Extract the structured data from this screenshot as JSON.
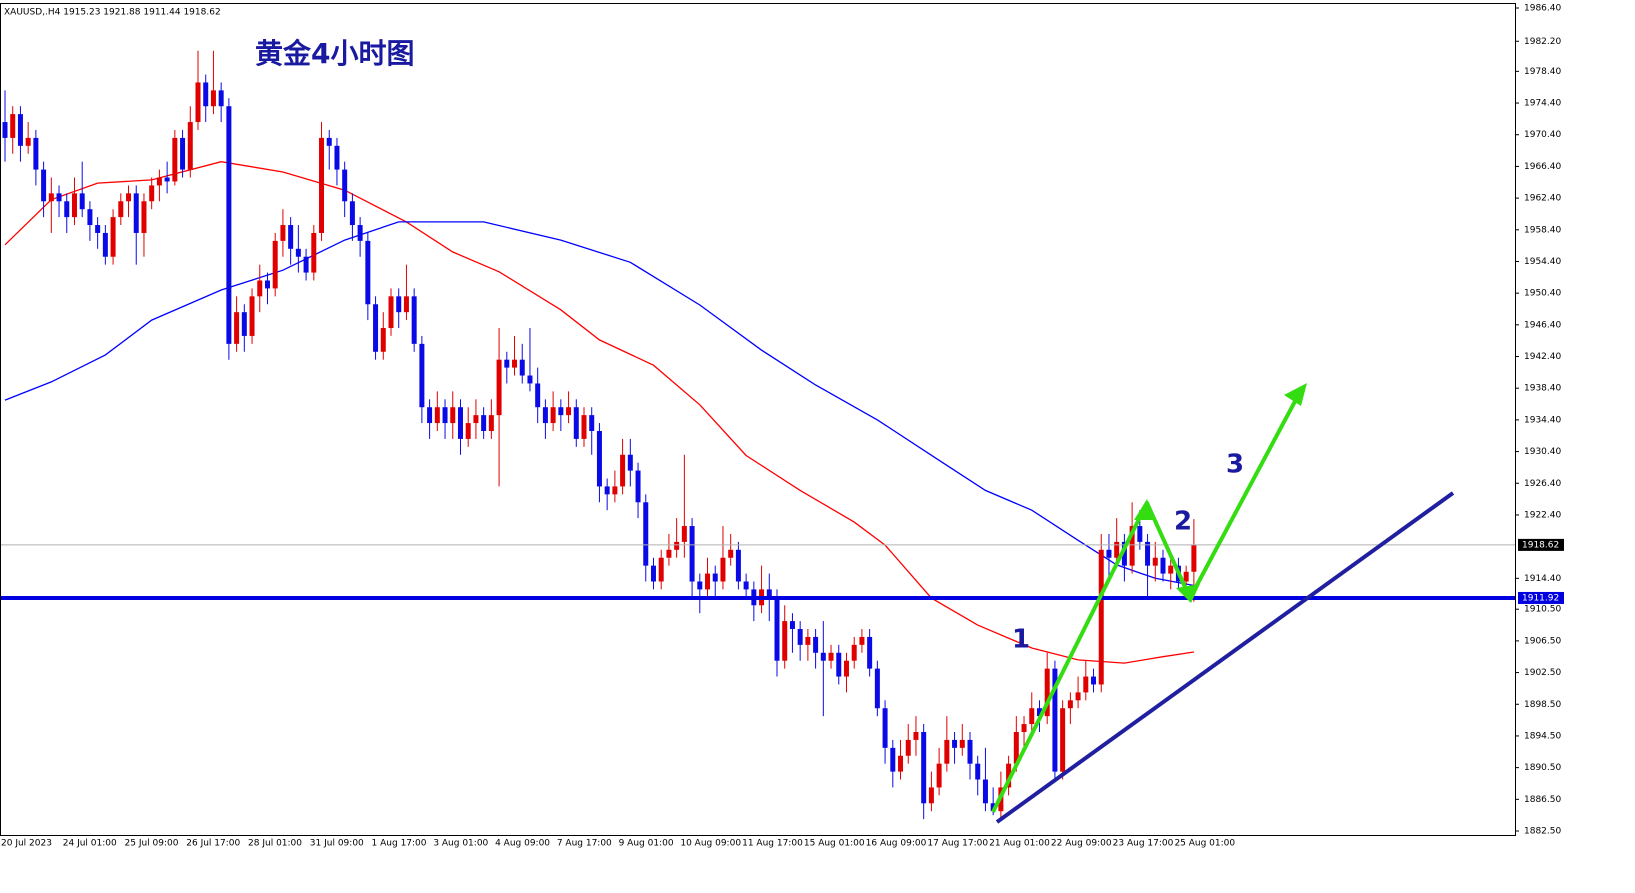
{
  "chart_data": {
    "type": "candlestick",
    "header": "XAUUSD,.H4  1915.23 1921.88 1911.44 1918.62",
    "title": "黄金4小时图",
    "annotations": [
      "1",
      "2",
      "3"
    ],
    "up_color": "#e00000",
    "down_color": "#0a0ae6",
    "categories": [
      "20 Jul 2023",
      null,
      null,
      null,
      null,
      null,
      null,
      null,
      "24 Jul 01:00",
      null,
      null,
      null,
      null,
      null,
      null,
      null,
      "25 Jul 09:00",
      null,
      null,
      null,
      null,
      null,
      null,
      null,
      "26 Jul 17:00",
      null,
      null,
      null,
      null,
      null,
      null,
      null,
      "28 Jul 01:00",
      null,
      null,
      null,
      null,
      null,
      null,
      null,
      "31 Jul 09:00",
      null,
      null,
      null,
      null,
      null,
      null,
      null,
      "1 Aug 17:00",
      null,
      null,
      null,
      null,
      null,
      null,
      null,
      "3 Aug 01:00",
      null,
      null,
      null,
      null,
      null,
      null,
      null,
      "4 Aug 09:00",
      null,
      null,
      null,
      null,
      null,
      null,
      null,
      "7 Aug 17:00",
      null,
      null,
      null,
      null,
      null,
      null,
      null,
      "9 Aug 01:00",
      null,
      null,
      null,
      null,
      null,
      null,
      null,
      "10 Aug 09:00",
      null,
      null,
      null,
      null,
      null,
      null,
      null,
      "11 Aug 17:00",
      null,
      null,
      null,
      null,
      null,
      null,
      null,
      "15 Aug 01:00",
      null,
      null,
      null,
      null,
      null,
      null,
      null,
      "16 Aug 09:00",
      null,
      null,
      null,
      null,
      null,
      null,
      null,
      "17 Aug 17:00",
      null,
      null,
      null,
      null,
      null,
      null,
      null,
      "21 Aug 01:00",
      null,
      null,
      null,
      null,
      null,
      null,
      null,
      "22 Aug 09:00",
      null,
      null,
      null,
      null,
      null,
      null,
      null,
      "23 Aug 17:00",
      null,
      null,
      null,
      null,
      null,
      null,
      null,
      "25 Aug 01:00",
      null,
      null
    ],
    "ohlc": [
      [
        1972,
        1976,
        1967,
        1970
      ],
      [
        1970,
        1974,
        1968,
        1973
      ],
      [
        1973,
        1974,
        1967,
        1969
      ],
      [
        1969,
        1972,
        1968,
        1970
      ],
      [
        1970,
        1971,
        1964,
        1966
      ],
      [
        1966,
        1967,
        1960,
        1962
      ],
      [
        1962,
        1965,
        1958,
        1963
      ],
      [
        1963,
        1964,
        1960,
        1962
      ],
      [
        1962,
        1963,
        1958,
        1960
      ],
      [
        1960,
        1965,
        1959,
        1963
      ],
      [
        1963,
        1967,
        1960,
        1961
      ],
      [
        1961,
        1962,
        1957,
        1959
      ],
      [
        1959,
        1960,
        1956,
        1958
      ],
      [
        1958,
        1959,
        1954,
        1955
      ],
      [
        1955,
        1961,
        1954,
        1960
      ],
      [
        1960,
        1963,
        1959,
        1962
      ],
      [
        1962,
        1964,
        1960,
        1963
      ],
      [
        1963,
        1964,
        1954,
        1958
      ],
      [
        1958,
        1963,
        1955,
        1962
      ],
      [
        1962,
        1965,
        1961,
        1964
      ],
      [
        1964,
        1966,
        1962,
        1965
      ],
      [
        1965,
        1967,
        1963,
        1964.5
      ],
      [
        1964.5,
        1971,
        1964,
        1970
      ],
      [
        1970,
        1971,
        1965,
        1966
      ],
      [
        1966,
        1974,
        1965,
        1972
      ],
      [
        1972,
        1981,
        1971,
        1977
      ],
      [
        1977,
        1978,
        1972,
        1974
      ],
      [
        1974,
        1981,
        1973,
        1976
      ],
      [
        1976,
        1977,
        1972,
        1974
      ],
      [
        1974,
        1975,
        1942,
        1944
      ],
      [
        1944,
        1950,
        1943,
        1948
      ],
      [
        1948,
        1949,
        1943,
        1945
      ],
      [
        1945,
        1951,
        1944,
        1950
      ],
      [
        1950,
        1954,
        1948,
        1952
      ],
      [
        1952,
        1953,
        1949,
        1951
      ],
      [
        1951,
        1958,
        1950,
        1957
      ],
      [
        1957,
        1961,
        1955,
        1959
      ],
      [
        1959,
        1960,
        1954,
        1956
      ],
      [
        1956,
        1959,
        1953,
        1955
      ],
      [
        1955,
        1956,
        1952,
        1953
      ],
      [
        1953,
        1959,
        1952,
        1958
      ],
      [
        1958,
        1972,
        1957,
        1970
      ],
      [
        1970,
        1971,
        1966,
        1969
      ],
      [
        1969,
        1970,
        1964,
        1966
      ],
      [
        1966,
        1967,
        1960,
        1962
      ],
      [
        1962,
        1963,
        1957,
        1959
      ],
      [
        1959,
        1960,
        1955,
        1957
      ],
      [
        1957,
        1958,
        1947,
        1949
      ],
      [
        1949,
        1950,
        1942,
        1943
      ],
      [
        1943,
        1948,
        1942,
        1946
      ],
      [
        1946,
        1951,
        1945,
        1950
      ],
      [
        1950,
        1951,
        1946,
        1948
      ],
      [
        1948,
        1954,
        1947,
        1950
      ],
      [
        1950,
        1951,
        1943,
        1944
      ],
      [
        1944,
        1945,
        1934,
        1936
      ],
      [
        1936,
        1937,
        1932,
        1934
      ],
      [
        1934,
        1938,
        1933,
        1936
      ],
      [
        1936,
        1937,
        1932,
        1934
      ],
      [
        1934,
        1938,
        1932,
        1936
      ],
      [
        1936,
        1937,
        1930,
        1932
      ],
      [
        1932,
        1936,
        1931,
        1934
      ],
      [
        1934,
        1937,
        1932,
        1935
      ],
      [
        1935,
        1936,
        1932,
        1933
      ],
      [
        1933,
        1937,
        1932,
        1935
      ],
      [
        1935,
        1946,
        1926,
        1942
      ],
      [
        1942,
        1943,
        1939,
        1941
      ],
      [
        1941,
        1945,
        1940,
        1942
      ],
      [
        1942,
        1944,
        1939,
        1940
      ],
      [
        1940,
        1946,
        1938,
        1939
      ],
      [
        1939,
        1941,
        1934,
        1936
      ],
      [
        1936,
        1937,
        1932,
        1934
      ],
      [
        1934,
        1938,
        1933,
        1936
      ],
      [
        1936,
        1937,
        1933,
        1935
      ],
      [
        1935,
        1938,
        1934,
        1936
      ],
      [
        1936,
        1937,
        1931,
        1932
      ],
      [
        1932,
        1936,
        1931,
        1935
      ],
      [
        1935,
        1936,
        1930,
        1933
      ],
      [
        1933,
        1934,
        1924,
        1926
      ],
      [
        1926,
        1927,
        1923,
        1925
      ],
      [
        1925,
        1928,
        1924,
        1926
      ],
      [
        1926,
        1932,
        1925,
        1930
      ],
      [
        1930,
        1932,
        1926,
        1928
      ],
      [
        1928,
        1929,
        1922,
        1924
      ],
      [
        1924,
        1925,
        1914,
        1916
      ],
      [
        1916,
        1917,
        1913,
        1914
      ],
      [
        1914,
        1918,
        1913,
        1917
      ],
      [
        1917,
        1920,
        1916,
        1918
      ],
      [
        1918,
        1922,
        1917,
        1919
      ],
      [
        1919,
        1930,
        1917,
        1921
      ],
      [
        1921,
        1922,
        1912,
        1914
      ],
      [
        1914,
        1915,
        1910,
        1913
      ],
      [
        1913,
        1917,
        1912,
        1915
      ],
      [
        1915,
        1916,
        1912,
        1914
      ],
      [
        1914,
        1921,
        1913,
        1917
      ],
      [
        1917,
        1920,
        1916,
        1918
      ],
      [
        1918,
        1919,
        1913,
        1914
      ],
      [
        1914,
        1915,
        1912,
        1913
      ],
      [
        1913,
        1914,
        1909,
        1911
      ],
      [
        1911,
        1916,
        1910,
        1913
      ],
      [
        1913,
        1915,
        1909,
        1912
      ],
      [
        1912,
        1913,
        1902,
        1904
      ],
      [
        1904,
        1911,
        1903,
        1909
      ],
      [
        1909,
        1910,
        1905,
        1908
      ],
      [
        1908,
        1909,
        1904,
        1906
      ],
      [
        1906,
        1908,
        1904,
        1907
      ],
      [
        1907,
        1908,
        1903,
        1905
      ],
      [
        1905,
        1909,
        1897,
        1904
      ],
      [
        1904,
        1906,
        1903,
        1905
      ],
      [
        1905,
        1906,
        1901,
        1902
      ],
      [
        1902,
        1905,
        1900,
        1904
      ],
      [
        1904,
        1907,
        1903,
        1906
      ],
      [
        1906,
        1908,
        1905,
        1907
      ],
      [
        1907,
        1908,
        1902,
        1903
      ],
      [
        1903,
        1904,
        1897,
        1898
      ],
      [
        1898,
        1899,
        1891,
        1893
      ],
      [
        1893,
        1894,
        1888,
        1890
      ],
      [
        1890,
        1894,
        1889,
        1892
      ],
      [
        1892,
        1896,
        1891,
        1894
      ],
      [
        1894,
        1897,
        1892,
        1895
      ],
      [
        1895,
        1896,
        1884,
        1886
      ],
      [
        1886,
        1890,
        1885,
        1888
      ],
      [
        1888,
        1893,
        1887,
        1891
      ],
      [
        1891,
        1897,
        1890,
        1894
      ],
      [
        1894,
        1895,
        1891,
        1893
      ],
      [
        1893,
        1896,
        1892,
        1894
      ],
      [
        1894,
        1895,
        1889,
        1891
      ],
      [
        1891,
        1892,
        1887,
        1889
      ],
      [
        1889,
        1893,
        1885,
        1886
      ],
      [
        1886,
        1888,
        1884.5,
        1885
      ],
      [
        1885,
        1890,
        1884,
        1888
      ],
      [
        1888,
        1892,
        1887,
        1891
      ],
      [
        1891,
        1897,
        1890,
        1895
      ],
      [
        1895,
        1897,
        1893,
        1896
      ],
      [
        1896,
        1900,
        1895,
        1898
      ],
      [
        1898,
        1899,
        1895,
        1897
      ],
      [
        1897,
        1905,
        1896,
        1903
      ],
      [
        1903,
        1904,
        1889,
        1890
      ],
      [
        1890,
        1899,
        1889,
        1898
      ],
      [
        1898,
        1900,
        1896,
        1899
      ],
      [
        1899,
        1902,
        1898,
        1900
      ],
      [
        1900,
        1904,
        1899,
        1902
      ],
      [
        1902,
        1903,
        1900,
        1901
      ],
      [
        1901,
        1920,
        1900,
        1918
      ],
      [
        1918,
        1920,
        1914,
        1917
      ],
      [
        1917,
        1922,
        1916,
        1919
      ],
      [
        1919,
        1920,
        1914,
        1916
      ],
      [
        1916,
        1924,
        1915,
        1921
      ],
      [
        1921,
        1923,
        1918,
        1919
      ],
      [
        1919,
        1920,
        1912,
        1916
      ],
      [
        1916,
        1919,
        1914,
        1917
      ],
      [
        1917,
        1918,
        1914,
        1915
      ],
      [
        1915,
        1917,
        1913,
        1916
      ],
      [
        1916,
        1917,
        1913,
        1914
      ],
      [
        1914,
        1916,
        1913,
        1915.23
      ],
      [
        1915.23,
        1921.88,
        1911.44,
        1918.62
      ]
    ],
    "ma": [
      {
        "color": "#ff0000",
        "x": [
          0,
          6,
          12,
          19,
          28,
          36,
          44,
          52,
          58,
          64,
          72,
          77,
          84,
          90,
          96,
          103,
          110,
          114,
          120,
          126,
          133,
          139,
          145,
          150,
          154
        ],
        "values": [
          1956.5,
          1962.2,
          1964.3,
          1964.7,
          1967.0,
          1965.7,
          1963.4,
          1959.4,
          1955.6,
          1953.1,
          1948.3,
          1944.5,
          1941.3,
          1936.3,
          1929.9,
          1925.5,
          1921.5,
          1918.6,
          1911.9,
          1908.5,
          1905.6,
          1904.1,
          1903.7,
          1904.5,
          1905.1
        ]
      },
      {
        "color": "#0000ff",
        "x": [
          0,
          6,
          13,
          19,
          28,
          36,
          44,
          51,
          62,
          72,
          81,
          90,
          98,
          105,
          113,
          121,
          127,
          133,
          139,
          144,
          149,
          154
        ],
        "values": [
          1936.9,
          1939.2,
          1942.6,
          1947.0,
          1950.8,
          1953.3,
          1957.1,
          1959.4,
          1959.4,
          1957.1,
          1954.3,
          1948.9,
          1943.2,
          1938.8,
          1934.4,
          1929.3,
          1925.5,
          1923.0,
          1919.2,
          1916.1,
          1914.4,
          1913.5
        ]
      }
    ],
    "hlines": [
      {
        "value": 1918.62,
        "label": "1918.62",
        "color": "#b0b0b0",
        "width": 1,
        "label_bg": "#000000"
      },
      {
        "value": 1911.92,
        "label": "1911.92",
        "color": "#0000e0",
        "width": 4,
        "label_bg": "#0000e0"
      }
    ],
    "ylim": [
      1881.87,
      1987.03
    ],
    "yticks": [
      {
        "value": 1986.4,
        "label": "1986.40"
      },
      {
        "value": 1982.2,
        "label": "1982.20"
      },
      {
        "value": 1978.4,
        "label": "1978.40"
      },
      {
        "value": 1974.4,
        "label": "1974.40"
      },
      {
        "value": 1970.4,
        "label": "1970.40"
      },
      {
        "value": 1966.4,
        "label": "1966.40"
      },
      {
        "value": 1962.4,
        "label": "1962.40"
      },
      {
        "value": 1958.4,
        "label": "1958.40"
      },
      {
        "value": 1954.4,
        "label": "1954.40"
      },
      {
        "value": 1950.4,
        "label": "1950.40"
      },
      {
        "value": 1946.4,
        "label": "1946.40"
      },
      {
        "value": 1942.4,
        "label": "1942.40"
      },
      {
        "value": 1938.4,
        "label": "1938.40"
      },
      {
        "value": 1934.4,
        "label": "1934.40"
      },
      {
        "value": 1930.4,
        "label": "1930.40"
      },
      {
        "value": 1926.4,
        "label": "1926.40"
      },
      {
        "value": 1922.4,
        "label": "1922.40"
      },
      {
        "value": 1914.4,
        "label": "1914.40"
      },
      {
        "value": 1910.5,
        "label": "1910.50"
      },
      {
        "value": 1906.5,
        "label": "1906.50"
      },
      {
        "value": 1902.5,
        "label": "1902.50"
      },
      {
        "value": 1898.5,
        "label": "1898.50"
      },
      {
        "value": 1894.5,
        "label": "1894.50"
      },
      {
        "value": 1890.5,
        "label": "1890.50"
      },
      {
        "value": 1886.5,
        "label": "1886.50"
      },
      {
        "value": 1882.5,
        "label": "1882.50"
      }
    ]
  }
}
